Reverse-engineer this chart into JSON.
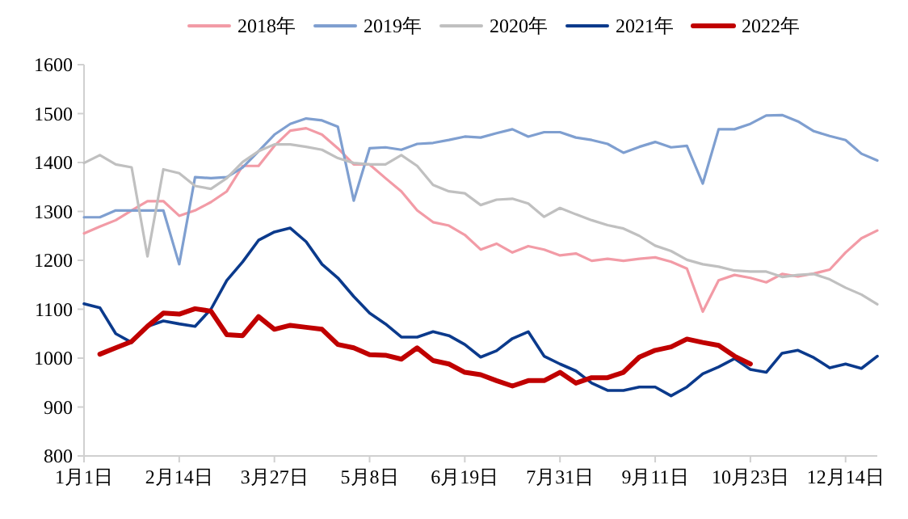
{
  "chart_data": {
    "type": "line",
    "categories": [
      "1月1日",
      null,
      null,
      null,
      null,
      null,
      "2月14日",
      null,
      null,
      null,
      null,
      null,
      "3月27日",
      null,
      null,
      null,
      null,
      null,
      "5月8日",
      null,
      null,
      null,
      null,
      null,
      "6月19日",
      null,
      null,
      null,
      null,
      null,
      "7月31日",
      null,
      null,
      null,
      null,
      null,
      "9月11日",
      null,
      null,
      null,
      null,
      null,
      "10月23日",
      null,
      null,
      null,
      null,
      null,
      "12月14日",
      null,
      null
    ],
    "series": [
      {
        "name": "2018年",
        "color": "#f29ba6",
        "values": [
          1255,
          1269,
          1282,
          1302,
          1321,
          1321,
          1291,
          1302,
          1319,
          1341,
          1393,
          1393,
          1434,
          1465,
          1470,
          1457,
          1429,
          1396,
          1396,
          1368,
          1341,
          1302,
          1278,
          1271,
          1252,
          1222,
          1234,
          1216,
          1229,
          1222,
          1210,
          1214,
          1199,
          1203,
          1199,
          1203,
          1206,
          1197,
          1183,
          1095,
          1159,
          1170,
          1164,
          1155,
          1172,
          1167,
          1173,
          1181,
          1216,
          1245,
          1261
        ]
      },
      {
        "name": "2019年",
        "color": "#7f9fd0",
        "values": [
          1288,
          1288,
          1302,
          1302,
          1302,
          1302,
          1192,
          1370,
          1368,
          1370,
          1390,
          1423,
          1457,
          1479,
          1490,
          1486,
          1473,
          1322,
          1429,
          1431,
          1426,
          1438,
          1440,
          1446,
          1453,
          1451,
          1460,
          1468,
          1453,
          1462,
          1462,
          1451,
          1446,
          1438,
          1420,
          1432,
          1442,
          1431,
          1434,
          1357,
          1468,
          1468,
          1479,
          1496,
          1497,
          1484,
          1464,
          1454,
          1446,
          1418,
          1404
        ]
      },
      {
        "name": "2020年",
        "color": "#c0c0c0",
        "values": [
          1399,
          1415,
          1396,
          1390,
          1208,
          1386,
          1378,
          1352,
          1346,
          1368,
          1401,
          1423,
          1437,
          1437,
          1432,
          1426,
          1409,
          1399,
          1396,
          1396,
          1415,
          1393,
          1354,
          1341,
          1337,
          1313,
          1324,
          1326,
          1316,
          1289,
          1307,
          1294,
          1282,
          1272,
          1265,
          1250,
          1230,
          1219,
          1201,
          1192,
          1187,
          1179,
          1177,
          1177,
          1166,
          1170,
          1172,
          1161,
          1144,
          1130,
          1110
        ]
      },
      {
        "name": "2021年",
        "color": "#0b3a8c",
        "values": [
          1111,
          1103,
          1050,
          1032,
          1065,
          1076,
          1070,
          1065,
          1100,
          1159,
          1197,
          1241,
          1258,
          1266,
          1238,
          1192,
          1164,
          1126,
          1092,
          1070,
          1043,
          1043,
          1054,
          1046,
          1028,
          1002,
          1015,
          1040,
          1054,
          1004,
          988,
          974,
          949,
          934,
          934,
          941,
          941,
          923,
          941,
          968,
          982,
          999,
          977,
          971,
          1010,
          1016,
          1001,
          980,
          988,
          979,
          1004
        ]
      },
      {
        "name": "2022年",
        "color": "#c00000",
        "values": [
          null,
          1008,
          1021,
          1034,
          1065,
          1092,
          1090,
          1101,
          1096,
          1048,
          1046,
          1085,
          1059,
          1067,
          1063,
          1059,
          1028,
          1021,
          1007,
          1006,
          998,
          1021,
          995,
          988,
          971,
          966,
          954,
          943,
          954,
          954,
          971,
          949,
          960,
          960,
          971,
          1002,
          1016,
          1023,
          1039,
          1032,
          1026,
          1004,
          988,
          null,
          null,
          null,
          null,
          null,
          null,
          null,
          null
        ]
      }
    ],
    "ylim": [
      800,
      1600
    ],
    "yticks": [
      800,
      900,
      1000,
      1100,
      1200,
      1300,
      1400,
      1500,
      1600
    ],
    "legend": "top",
    "grid": false
  }
}
